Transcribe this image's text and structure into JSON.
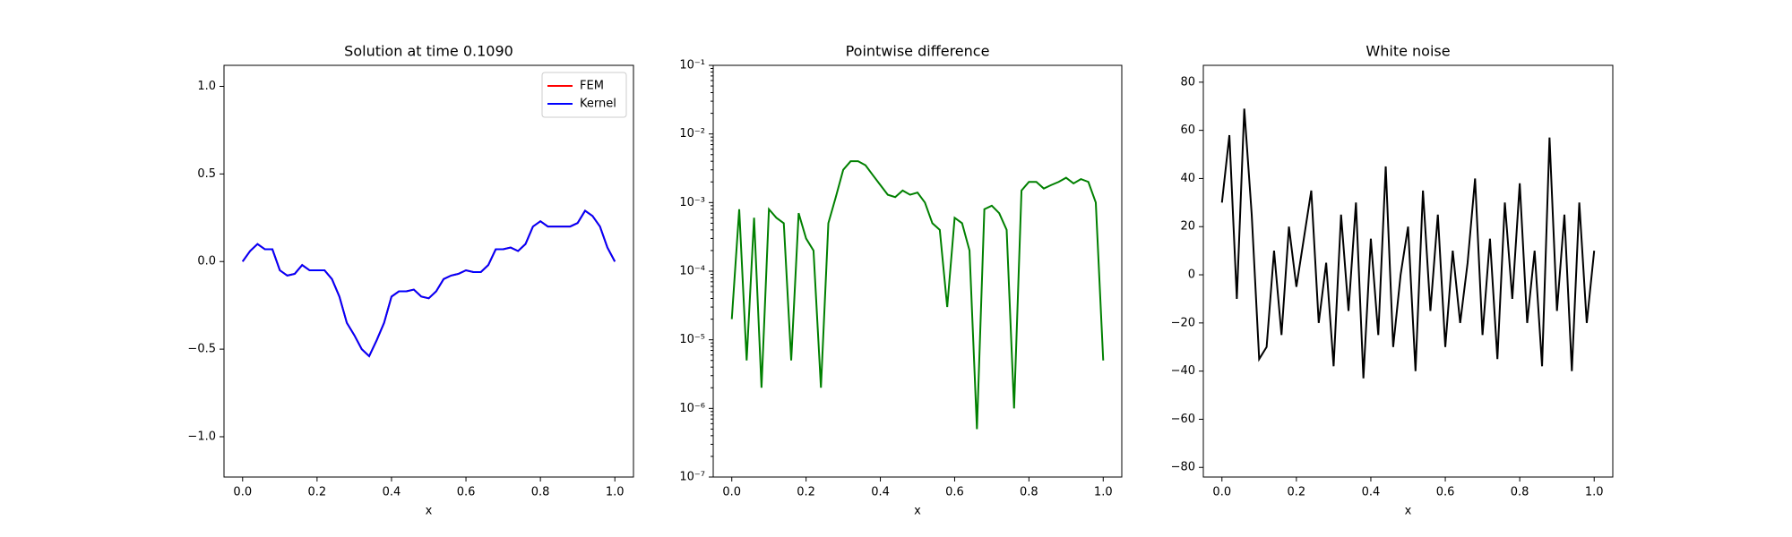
{
  "chart_data": [
    {
      "type": "line",
      "title": "Solution at time 0.1090",
      "xlabel": "x",
      "x": [
        0,
        0.02,
        0.04,
        0.06,
        0.08,
        0.1,
        0.12,
        0.14,
        0.16,
        0.18,
        0.2,
        0.22,
        0.24,
        0.26,
        0.28,
        0.3,
        0.32,
        0.34,
        0.36,
        0.38,
        0.4,
        0.42,
        0.44,
        0.46,
        0.48,
        0.5,
        0.52,
        0.54,
        0.56,
        0.58,
        0.6,
        0.62,
        0.64,
        0.66,
        0.68,
        0.7,
        0.72,
        0.74,
        0.76,
        0.78,
        0.8,
        0.82,
        0.84,
        0.86,
        0.88,
        0.9,
        0.92,
        0.94,
        0.96,
        0.98,
        1.0
      ],
      "series": [
        {
          "name": "FEM",
          "color": "#ff0000",
          "values": [
            0,
            0.06,
            0.1,
            0.07,
            0.07,
            -0.05,
            -0.08,
            -0.07,
            -0.02,
            -0.05,
            -0.05,
            -0.05,
            -0.1,
            -0.2,
            -0.35,
            -0.42,
            -0.5,
            -0.54,
            -0.45,
            -0.35,
            -0.2,
            -0.17,
            -0.17,
            -0.16,
            -0.2,
            -0.21,
            -0.17,
            -0.1,
            -0.08,
            -0.07,
            -0.05,
            -0.06,
            -0.06,
            -0.02,
            0.07,
            0.07,
            0.08,
            0.06,
            0.1,
            0.2,
            0.23,
            0.2,
            0.2,
            0.2,
            0.2,
            0.22,
            0.29,
            0.26,
            0.2,
            0.08,
            0
          ]
        },
        {
          "name": "Kernel",
          "color": "#0000ff",
          "values": [
            0,
            0.06,
            0.1,
            0.07,
            0.07,
            -0.05,
            -0.08,
            -0.07,
            -0.02,
            -0.05,
            -0.05,
            -0.05,
            -0.1,
            -0.2,
            -0.35,
            -0.42,
            -0.5,
            -0.54,
            -0.45,
            -0.35,
            -0.2,
            -0.17,
            -0.17,
            -0.16,
            -0.2,
            -0.21,
            -0.17,
            -0.1,
            -0.08,
            -0.07,
            -0.05,
            -0.06,
            -0.06,
            -0.02,
            0.07,
            0.07,
            0.08,
            0.06,
            0.1,
            0.2,
            0.23,
            0.2,
            0.2,
            0.2,
            0.2,
            0.22,
            0.29,
            0.26,
            0.2,
            0.08,
            0
          ]
        }
      ],
      "xlim": [
        -0.05,
        1.05
      ],
      "xticks": [
        {
          "value": 0,
          "label": "0.0"
        },
        {
          "value": 0.2,
          "label": "0.2"
        },
        {
          "value": 0.4,
          "label": "0.4"
        },
        {
          "value": 0.6,
          "label": "0.6"
        },
        {
          "value": 0.8,
          "label": "0.8"
        },
        {
          "value": 1,
          "label": "1.0"
        }
      ],
      "ylim": [
        -1.23,
        1.12
      ],
      "yticks": [
        {
          "value": -1,
          "label": "−1.0"
        },
        {
          "value": -0.5,
          "label": "−0.5"
        },
        {
          "value": 0,
          "label": "0.0"
        },
        {
          "value": 0.5,
          "label": "0.5"
        },
        {
          "value": 1,
          "label": "1.0"
        }
      ],
      "legend": "upper right"
    },
    {
      "type": "line",
      "title": "Pointwise difference",
      "xlabel": "x",
      "yscale": "log",
      "x": [
        0,
        0.02,
        0.04,
        0.06,
        0.08,
        0.1,
        0.12,
        0.14,
        0.16,
        0.18,
        0.2,
        0.22,
        0.24,
        0.26,
        0.28,
        0.3,
        0.32,
        0.34,
        0.36,
        0.38,
        0.4,
        0.42,
        0.44,
        0.46,
        0.48,
        0.5,
        0.52,
        0.54,
        0.56,
        0.58,
        0.6,
        0.62,
        0.64,
        0.66,
        0.68,
        0.7,
        0.72,
        0.74,
        0.76,
        0.78,
        0.8,
        0.82,
        0.84,
        0.86,
        0.88,
        0.9,
        0.92,
        0.94,
        0.96,
        0.98,
        1.0
      ],
      "series": [
        {
          "color": "#008000",
          "values": [
            2e-05,
            0.0008,
            5e-06,
            0.0006,
            2e-06,
            0.0008,
            0.0006,
            0.0005,
            5e-06,
            0.0007,
            0.0003,
            0.0002,
            2e-06,
            0.0005,
            0.0012,
            0.003,
            0.004,
            0.004,
            0.0035,
            0.0025,
            0.0018,
            0.0013,
            0.0012,
            0.0015,
            0.0013,
            0.0014,
            0.001,
            0.0005,
            0.0004,
            3e-05,
            0.0006,
            0.0005,
            0.0002,
            5e-07,
            0.0008,
            0.0009,
            0.0007,
            0.0004,
            1e-06,
            0.0015,
            0.002,
            0.002,
            0.0016,
            0.0018,
            0.002,
            0.0023,
            0.0019,
            0.0022,
            0.002,
            0.001,
            5e-06
          ]
        }
      ],
      "xlim": [
        -0.05,
        1.05
      ],
      "xticks": [
        {
          "value": 0,
          "label": "0.0"
        },
        {
          "value": 0.2,
          "label": "0.2"
        },
        {
          "value": 0.4,
          "label": "0.4"
        },
        {
          "value": 0.6,
          "label": "0.6"
        },
        {
          "value": 0.8,
          "label": "0.8"
        },
        {
          "value": 1,
          "label": "1.0"
        }
      ],
      "ylim": [
        1e-07,
        0.1
      ],
      "yticks": [
        {
          "value": 1e-07,
          "label": "10⁻⁷"
        },
        {
          "value": 1e-06,
          "label": "10⁻⁶"
        },
        {
          "value": 1e-05,
          "label": "10⁻⁵"
        },
        {
          "value": 0.0001,
          "label": "10⁻⁴"
        },
        {
          "value": 0.001,
          "label": "10⁻³"
        },
        {
          "value": 0.01,
          "label": "10⁻²"
        },
        {
          "value": 0.1,
          "label": "10⁻¹"
        }
      ]
    },
    {
      "type": "line",
      "title": "White noise",
      "xlabel": "x",
      "x": [
        0,
        0.02,
        0.04,
        0.06,
        0.08,
        0.1,
        0.12,
        0.14,
        0.16,
        0.18,
        0.2,
        0.22,
        0.24,
        0.26,
        0.28,
        0.3,
        0.32,
        0.34,
        0.36,
        0.38,
        0.4,
        0.42,
        0.44,
        0.46,
        0.48,
        0.5,
        0.52,
        0.54,
        0.56,
        0.58,
        0.6,
        0.62,
        0.64,
        0.66,
        0.68,
        0.7,
        0.72,
        0.74,
        0.76,
        0.78,
        0.8,
        0.82,
        0.84,
        0.86,
        0.88,
        0.9,
        0.92,
        0.94,
        0.96,
        0.98,
        1.0
      ],
      "series": [
        {
          "color": "#000000",
          "values": [
            30,
            58,
            -10,
            69,
            25,
            -35,
            -30,
            10,
            -25,
            20,
            -5,
            15,
            35,
            -20,
            5,
            -38,
            25,
            -15,
            30,
            -43,
            15,
            -25,
            45,
            -30,
            0,
            20,
            -40,
            35,
            -15,
            25,
            -30,
            10,
            -20,
            5,
            40,
            -25,
            15,
            -35,
            30,
            -10,
            38,
            -20,
            10,
            -38,
            57,
            -15,
            25,
            -40,
            30,
            -20,
            10
          ]
        }
      ],
      "xlim": [
        -0.05,
        1.05
      ],
      "xticks": [
        {
          "value": 0,
          "label": "0.0"
        },
        {
          "value": 0.2,
          "label": "0.2"
        },
        {
          "value": 0.4,
          "label": "0.4"
        },
        {
          "value": 0.6,
          "label": "0.6"
        },
        {
          "value": 0.8,
          "label": "0.8"
        },
        {
          "value": 1,
          "label": "1.0"
        }
      ],
      "ylim": [
        -84,
        87
      ],
      "yticks": [
        {
          "value": -80,
          "label": "−80"
        },
        {
          "value": -60,
          "label": "−60"
        },
        {
          "value": -40,
          "label": "−40"
        },
        {
          "value": -20,
          "label": "−20"
        },
        0,
        20,
        40,
        60,
        80
      ]
    }
  ]
}
